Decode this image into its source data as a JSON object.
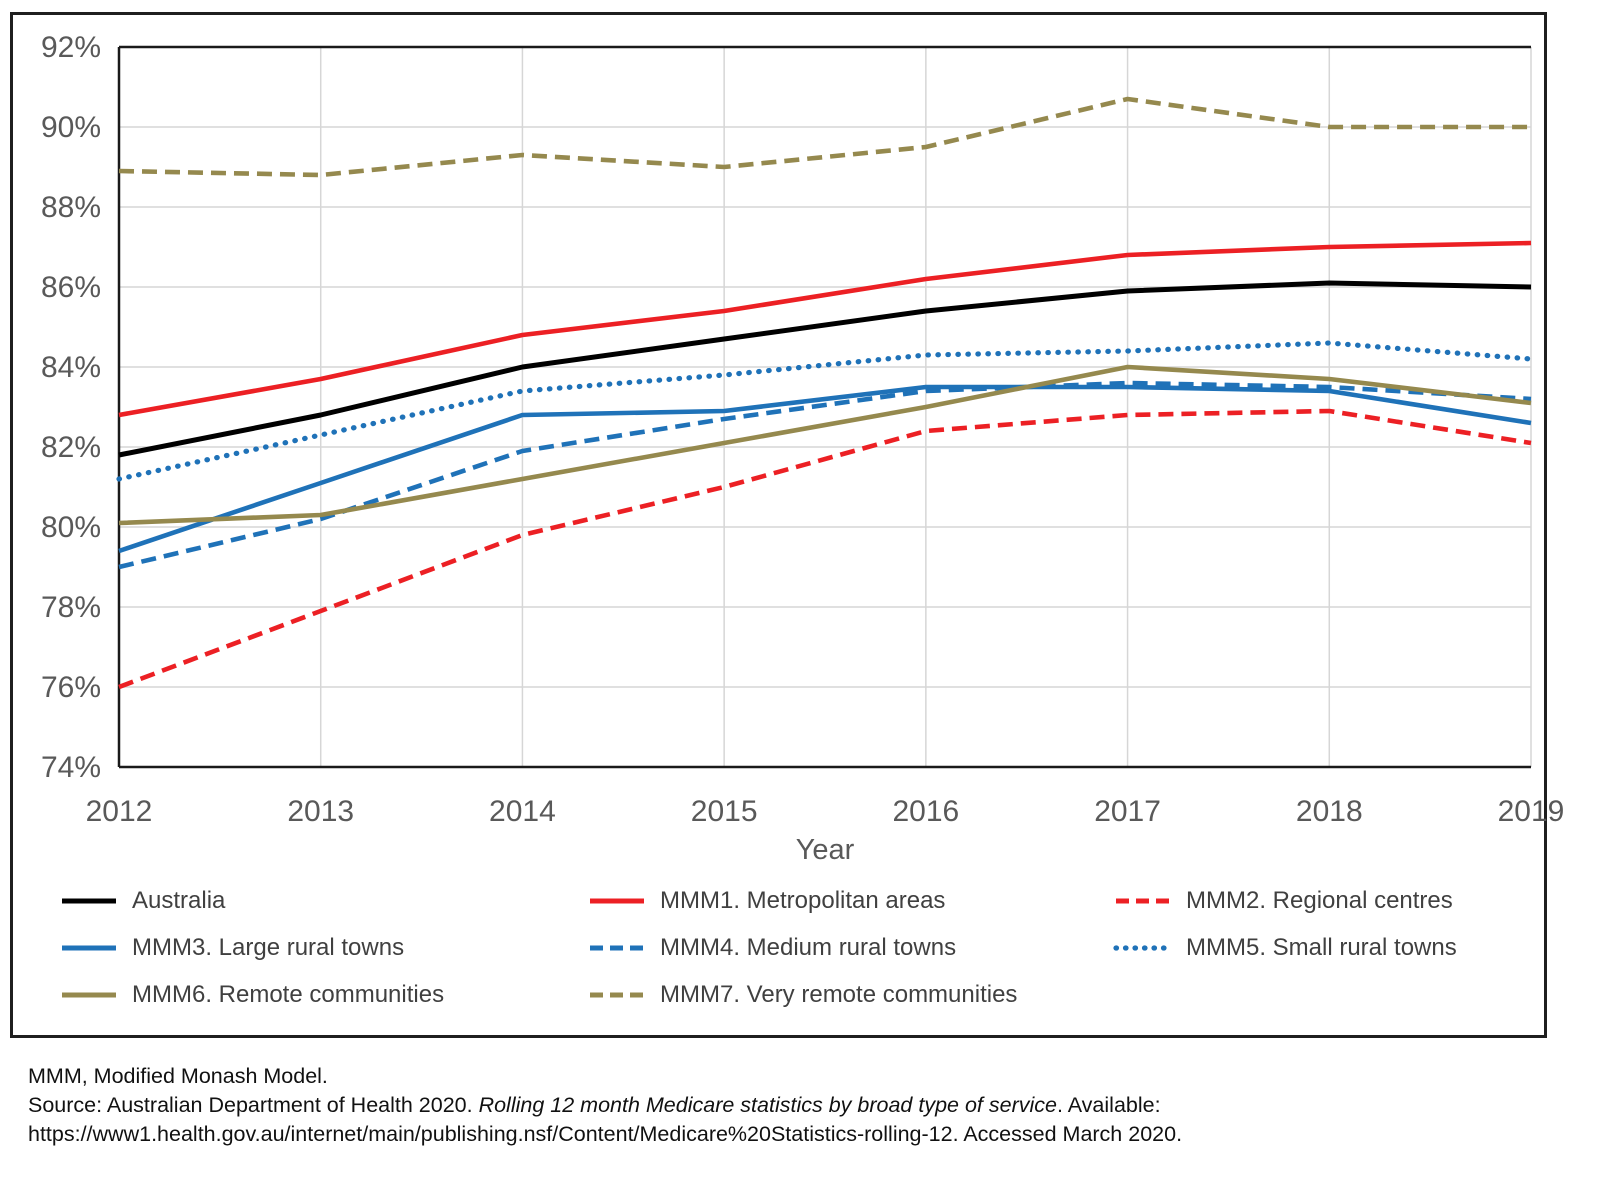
{
  "figure": {
    "background": "#ffffff",
    "border_color": "#1f1f1f"
  },
  "axes": {
    "x_label": "Year",
    "x_ticks": [
      "2012",
      "2013",
      "2014",
      "2015",
      "2016",
      "2017",
      "2018",
      "2019"
    ],
    "y_ticks": [
      "92%",
      "90%",
      "88%",
      "86%",
      "84%",
      "82%",
      "80%",
      "78%",
      "76%",
      "74%"
    ],
    "tick_color": "#595959",
    "grid_color": "#d6d6d6",
    "axis_line_color": "#1a1a1a"
  },
  "chart_data": {
    "type": "line",
    "title": "",
    "xlabel": "Year",
    "ylabel": "",
    "x": [
      2012,
      2013,
      2014,
      2015,
      2016,
      2017,
      2018,
      2019
    ],
    "ylim": [
      74,
      92
    ],
    "y_tick_step": 2,
    "y_unit": "%",
    "grid": true,
    "legend_position": "bottom",
    "series": [
      {
        "name": "Australia",
        "color": "#000000",
        "style": "solid",
        "values": [
          81.8,
          82.8,
          84.0,
          84.7,
          85.4,
          85.9,
          86.1,
          86.0
        ]
      },
      {
        "name": "MMM1. Metropolitan areas",
        "color": "#ec2024",
        "style": "solid",
        "values": [
          82.8,
          83.7,
          84.8,
          85.4,
          86.2,
          86.8,
          87.0,
          87.1
        ]
      },
      {
        "name": "MMM2. Regional centres",
        "color": "#ec2024",
        "style": "dashed",
        "values": [
          76.0,
          77.9,
          79.8,
          81.0,
          82.4,
          82.8,
          82.9,
          82.1
        ]
      },
      {
        "name": "MMM3. Large rural towns",
        "color": "#1f72b8",
        "style": "solid",
        "values": [
          79.4,
          81.1,
          82.8,
          82.9,
          83.5,
          83.5,
          83.4,
          82.6
        ]
      },
      {
        "name": "MMM4. Medium rural towns",
        "color": "#1f72b8",
        "style": "dashed",
        "values": [
          79.0,
          80.2,
          81.9,
          82.7,
          83.4,
          83.6,
          83.5,
          83.2
        ]
      },
      {
        "name": "MMM5. Small rural towns",
        "color": "#1f72b8",
        "style": "dotted",
        "values": [
          81.2,
          82.3,
          83.4,
          83.8,
          84.3,
          84.4,
          84.6,
          84.2
        ]
      },
      {
        "name": "MMM6. Remote communities",
        "color": "#95894e",
        "style": "solid",
        "values": [
          80.1,
          80.3,
          81.2,
          82.1,
          83.0,
          84.0,
          83.7,
          83.1
        ]
      },
      {
        "name": "MMM7. Very remote communities",
        "color": "#95894e",
        "style": "dashed",
        "values": [
          88.9,
          88.8,
          89.3,
          89.0,
          89.5,
          90.7,
          90.0,
          90.0
        ]
      }
    ]
  },
  "footer": {
    "line1": "MMM, Modified Monash Model.",
    "source_prefix": "Source: Australian Department of Health 2020. ",
    "source_italic": "Rolling 12 month Medicare statistics by broad type of service",
    "source_suffix": ". Available:",
    "line3": "https://www1.health.gov.au/internet/main/publishing.nsf/Content/Medicare%20Statistics-rolling-12. Accessed March 2020."
  }
}
